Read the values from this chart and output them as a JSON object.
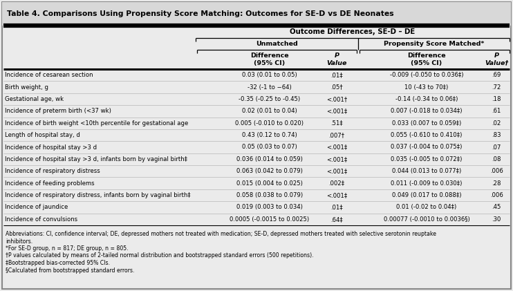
{
  "title": "Table 4. Comparisons Using Propensity Score Matching: Outcomes for SE-D vs DE Neonates",
  "header1": "Outcome Differences, SE-D – DE",
  "header2a": "Unmatched",
  "header2b": "Propensity Score Matched*",
  "rows": [
    [
      "Incidence of cesarean section",
      "0.03 (0.01 to 0.05)",
      ".01‡",
      "-0.009 (-0.050 to 0.036‡)",
      ".69"
    ],
    [
      "Birth weight, g",
      "-32 (-1 to −64)",
      ".05†",
      "10 (-43 to 70‡)",
      ".72"
    ],
    [
      "Gestational age, wk",
      "-0.35 (-0.25 to -0.45)",
      "<.001†",
      "-0.14 (-0.34 to 0.06‡)",
      ".18"
    ],
    [
      "Incidence of preterm birth (<37 wk)",
      "0.02 (0.01 to 0.04)",
      "<.001‡",
      "0.007 (-0.018 to 0.034‡)",
      ".61"
    ],
    [
      "Incidence of birth weight <10th percentile for gestational age",
      "0.005 (-0.010 to 0.020)",
      ".51‡",
      "0.033 (0.007 to 0.059‡)",
      ".02"
    ],
    [
      "Length of hospital stay, d",
      "0.43 (0.12 to 0.74)",
      ".007†",
      "0.055 (-0.610 to 0.410‡)",
      ".83"
    ],
    [
      "Incidence of hospital stay >3 d",
      "0.05 (0.03 to 0.07)",
      "<.001‡",
      "0.037 (-0.004 to 0.075‡)",
      ".07"
    ],
    [
      "Incidence of hospital stay >3 d, infants born by vaginal birth‡",
      "0.036 (0.014 to 0.059)",
      "<.001‡",
      "0.035 (-0.005 to 0.072‡)",
      ".08"
    ],
    [
      "Incidence of respiratory distress",
      "0.063 (0.042 to 0.079)",
      "<.001‡",
      "0.044 (0.013 to 0.077‡)",
      ".006"
    ],
    [
      "Incidence of feeding problems",
      "0.015 (0.004 to 0.025)",
      ".002‡",
      "0.011 (-0.009 to 0.030‡)",
      ".28"
    ],
    [
      "Incidence of respiratory distress, infants born by vaginal birth‡",
      "0.058 (0.038 to 0.079)",
      "<.001‡",
      "0.049 (0.017 to 0.088‡)",
      ".006"
    ],
    [
      "Incidence of jaundice",
      "0.019 (0.003 to 0.034)",
      ".01‡",
      "0.01 (-0.02 to 0.04‡)",
      ".45"
    ],
    [
      "Incidence of convulsions",
      "0.0005 (-0.0015 to 0.0025)",
      ".64‡",
      "0.00077 (-0.0010 to 0.0036§)",
      ".30"
    ]
  ],
  "footnotes": [
    "Abbreviations: CI, confidence interval; DE, depressed mothers not treated with medication; SE-D, depressed mothers treated with selective serotonin reuptake inhibitors.",
    "*For SE-D group, n = 817; DE group, n = 805.",
    "†P values calculated by means of 2-tailed normal distribution and bootstrapped standard errors (500 repetitions).",
    "‡Bootstrapped bias-corrected 95% CIs.",
    "§Calculated from bootstrapped standard errors."
  ],
  "bg_color": "#ebebeb",
  "title_fs": 7.8,
  "data_fs": 6.1,
  "fn_fs": 5.6,
  "hdr_fs": 6.8
}
